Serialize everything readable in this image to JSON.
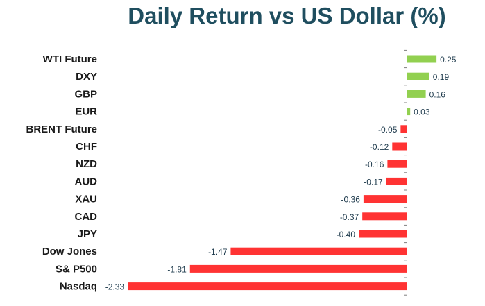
{
  "chart_data": {
    "type": "bar",
    "orientation": "horizontal",
    "title": "Daily Return vs US Dollar (%)",
    "xlabel": "",
    "ylabel": "",
    "categories": [
      "WTI Future",
      "DXY",
      "GBP",
      "EUR",
      "BRENT Future",
      "CHF",
      "NZD",
      "AUD",
      "XAU",
      "CAD",
      "JPY",
      "Dow Jones",
      "S& P500",
      "Nasdaq"
    ],
    "values": [
      0.25,
      0.19,
      0.16,
      0.03,
      -0.05,
      -0.12,
      -0.16,
      -0.17,
      -0.36,
      -0.37,
      -0.4,
      -1.47,
      -1.81,
      -2.33
    ],
    "value_labels": [
      "0.25",
      "0.19",
      "0.16",
      "0.03",
      "-0.05",
      "-0.12",
      "-0.16",
      "-0.17",
      "-0.36",
      "-0.37",
      "-0.40",
      "-1.47",
      "-1.81",
      "-2.33"
    ],
    "xlim": [
      -2.33,
      0.25
    ],
    "grid": false,
    "legend": "none",
    "colors": {
      "positive": "#92d050",
      "negative": "#ff3333",
      "axis": "#808080",
      "title": "#1f4e5f",
      "value_label": "#1f3b4d"
    }
  }
}
